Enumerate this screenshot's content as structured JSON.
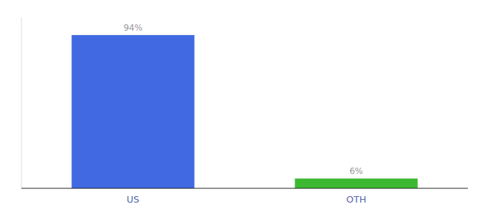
{
  "chart_data": {
    "type": "bar",
    "categories": [
      "US",
      "OTH"
    ],
    "values": [
      94,
      6
    ],
    "colors": [
      "#4169e1",
      "#3cb832"
    ],
    "value_labels": [
      "94%",
      "6%"
    ],
    "data_labels": true,
    "ylim": [
      0,
      105
    ],
    "tick_labels": "x",
    "grid": false
  }
}
